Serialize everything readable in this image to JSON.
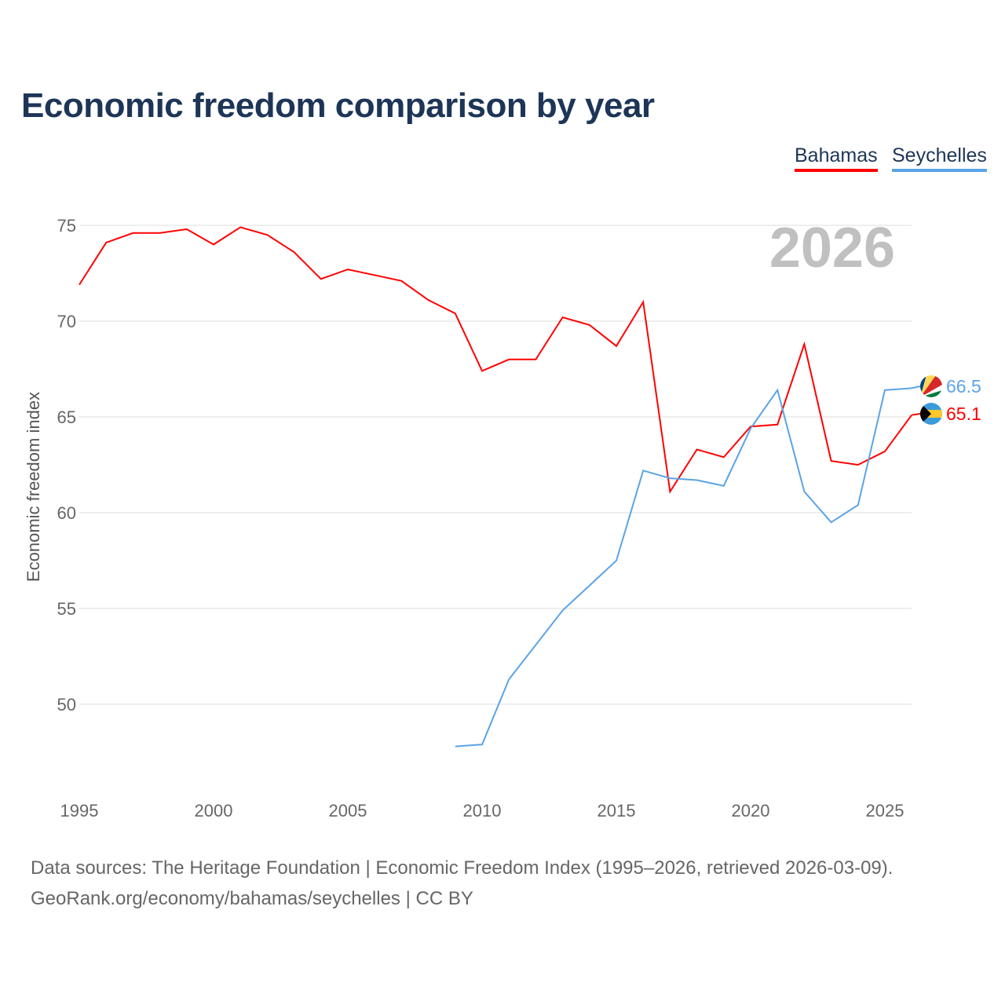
{
  "chart_data": {
    "type": "line",
    "title": "Economic freedom comparison by year",
    "ylabel": "Economic freedom index",
    "xlabel": "",
    "xlim": [
      1995,
      2026
    ],
    "ylim": [
      45.5,
      77
    ],
    "x_ticks": [
      "1995",
      "2000",
      "2005",
      "2010",
      "2015",
      "2020",
      "2025"
    ],
    "y_ticks": [
      "50",
      "55",
      "60",
      "65",
      "70",
      "75"
    ],
    "grid": true,
    "legend_position": "top-right",
    "year_watermark": "2026",
    "series": [
      {
        "name": "Bahamas",
        "color": "#ff0000",
        "end_label": "65.1",
        "x": [
          1995,
          1996,
          1997,
          1998,
          1999,
          2000,
          2001,
          2002,
          2003,
          2004,
          2005,
          2006,
          2007,
          2008,
          2009,
          2010,
          2011,
          2012,
          2013,
          2014,
          2015,
          2016,
          2017,
          2018,
          2019,
          2020,
          2021,
          2022,
          2023,
          2024,
          2025,
          2026
        ],
        "values": [
          71.9,
          74.1,
          74.6,
          74.6,
          74.8,
          74.0,
          74.9,
          74.5,
          73.6,
          72.2,
          72.7,
          72.4,
          72.1,
          71.1,
          70.4,
          67.4,
          68.0,
          68.0,
          70.2,
          69.8,
          68.7,
          71.0,
          61.1,
          63.3,
          62.9,
          64.5,
          64.6,
          68.8,
          62.7,
          62.5,
          63.2,
          65.1
        ]
      },
      {
        "name": "Seychelles",
        "color": "#5ba3e6",
        "end_label": "66.5",
        "x": [
          2009,
          2010,
          2011,
          2012,
          2013,
          2014,
          2015,
          2016,
          2017,
          2018,
          2019,
          2020,
          2021,
          2022,
          2023,
          2024,
          2025,
          2026
        ],
        "values": [
          47.8,
          47.9,
          51.3,
          53.1,
          54.9,
          56.2,
          57.5,
          62.2,
          61.8,
          61.7,
          61.4,
          64.4,
          66.4,
          61.1,
          59.5,
          60.4,
          66.4,
          66.5
        ]
      }
    ]
  },
  "footer": {
    "line1": "Data sources: The Heritage Foundation | Economic Freedom Index (1995–2026, retrieved 2026-03-09).",
    "line2": "GeoRank.org/economy/bahamas/seychelles | CC BY"
  }
}
